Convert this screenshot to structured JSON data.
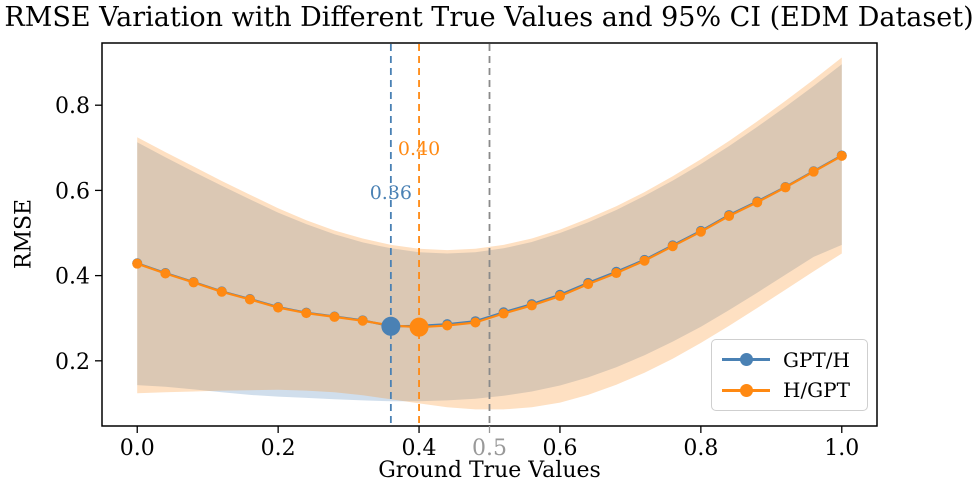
{
  "chart_data": {
    "type": "line",
    "title": "RMSE Variation with Different True Values and 95% CI (EDM Dataset)",
    "xlabel": "Ground True Values",
    "ylabel": "RMSE",
    "xlim": [
      -0.05,
      1.05
    ],
    "ylim": [
      0.047,
      0.946
    ],
    "grid": false,
    "legend_position": "lower right",
    "x_ticks": [
      {
        "value": 0.0,
        "label": "0.0",
        "muted": false
      },
      {
        "value": 0.2,
        "label": "0.2",
        "muted": false
      },
      {
        "value": 0.4,
        "label": "0.4",
        "muted": false
      },
      {
        "value": 0.5,
        "label": "0.5",
        "muted": true
      },
      {
        "value": 0.6,
        "label": "0.6",
        "muted": false
      },
      {
        "value": 0.8,
        "label": "0.8",
        "muted": false
      },
      {
        "value": 1.0,
        "label": "1.0",
        "muted": false
      }
    ],
    "y_ticks": [
      0.2,
      0.4,
      0.6,
      0.8
    ],
    "x": [
      0.0,
      0.04,
      0.08,
      0.12,
      0.16,
      0.2,
      0.24,
      0.28,
      0.32,
      0.36,
      0.4,
      0.44,
      0.48,
      0.52,
      0.56,
      0.6,
      0.64,
      0.68,
      0.72,
      0.76,
      0.8,
      0.84,
      0.88,
      0.92,
      0.96,
      1.0
    ],
    "series": [
      {
        "name": "GPT/H",
        "color": "#4a81b4",
        "values": [
          0.429,
          0.406,
          0.385,
          0.363,
          0.345,
          0.326,
          0.313,
          0.304,
          0.295,
          0.281,
          0.282,
          0.286,
          0.293,
          0.314,
          0.333,
          0.355,
          0.383,
          0.409,
          0.437,
          0.471,
          0.505,
          0.542,
          0.574,
          0.608,
          0.645,
          0.682
        ],
        "ci_upper": [
          0.713,
          0.678,
          0.644,
          0.611,
          0.579,
          0.548,
          0.521,
          0.497,
          0.478,
          0.464,
          0.455,
          0.452,
          0.455,
          0.464,
          0.479,
          0.5,
          0.525,
          0.554,
          0.587,
          0.623,
          0.662,
          0.704,
          0.749,
          0.796,
          0.845,
          0.896
        ],
        "ci_lower": [
          0.143,
          0.139,
          0.133,
          0.126,
          0.12,
          0.116,
          0.113,
          0.11,
          0.107,
          0.105,
          0.105,
          0.107,
          0.111,
          0.118,
          0.128,
          0.142,
          0.161,
          0.185,
          0.213,
          0.245,
          0.28,
          0.319,
          0.36,
          0.402,
          0.444,
          0.472
        ],
        "min_point": {
          "x": 0.36,
          "value": 0.281
        }
      },
      {
        "name": "H/GPT",
        "color": "#ff8912",
        "values": [
          0.428,
          0.405,
          0.384,
          0.362,
          0.344,
          0.325,
          0.312,
          0.303,
          0.294,
          0.283,
          0.279,
          0.283,
          0.29,
          0.311,
          0.33,
          0.352,
          0.38,
          0.406,
          0.435,
          0.469,
          0.503,
          0.54,
          0.572,
          0.607,
          0.644,
          0.681
        ],
        "ci_upper": [
          0.725,
          0.69,
          0.656,
          0.622,
          0.59,
          0.558,
          0.53,
          0.506,
          0.487,
          0.472,
          0.463,
          0.46,
          0.463,
          0.472,
          0.487,
          0.508,
          0.534,
          0.563,
          0.596,
          0.633,
          0.673,
          0.716,
          0.762,
          0.81,
          0.86,
          0.912
        ],
        "ci_lower": [
          0.124,
          0.126,
          0.128,
          0.13,
          0.131,
          0.132,
          0.13,
          0.126,
          0.119,
          0.11,
          0.1,
          0.091,
          0.086,
          0.086,
          0.091,
          0.102,
          0.12,
          0.144,
          0.172,
          0.205,
          0.242,
          0.282,
          0.324,
          0.367,
          0.41,
          0.452
        ],
        "min_point": {
          "x": 0.4,
          "value": 0.279
        }
      }
    ],
    "vlines": [
      {
        "x": 0.36,
        "color": "#4a81b4"
      },
      {
        "x": 0.4,
        "color": "#ff8912"
      },
      {
        "x": 0.5,
        "color": "#8a8a8a"
      }
    ],
    "annotations": [
      {
        "text": "0.36",
        "x": 0.36,
        "y": 0.594,
        "series": 0
      },
      {
        "text": "0.40",
        "x": 0.4,
        "y": 0.697,
        "series": 1
      }
    ]
  },
  "colors": {
    "ci_fill_blue": "rgba(74,129,180,0.26)",
    "ci_fill_orange": "rgba(253,141,28,0.27)",
    "muted_tick": "#999999",
    "axis": "#000000"
  },
  "legend": {
    "items": [
      {
        "label": "GPT/H",
        "color": "#4a81b4"
      },
      {
        "label": "H/GPT",
        "color": "#ff8912"
      }
    ]
  }
}
